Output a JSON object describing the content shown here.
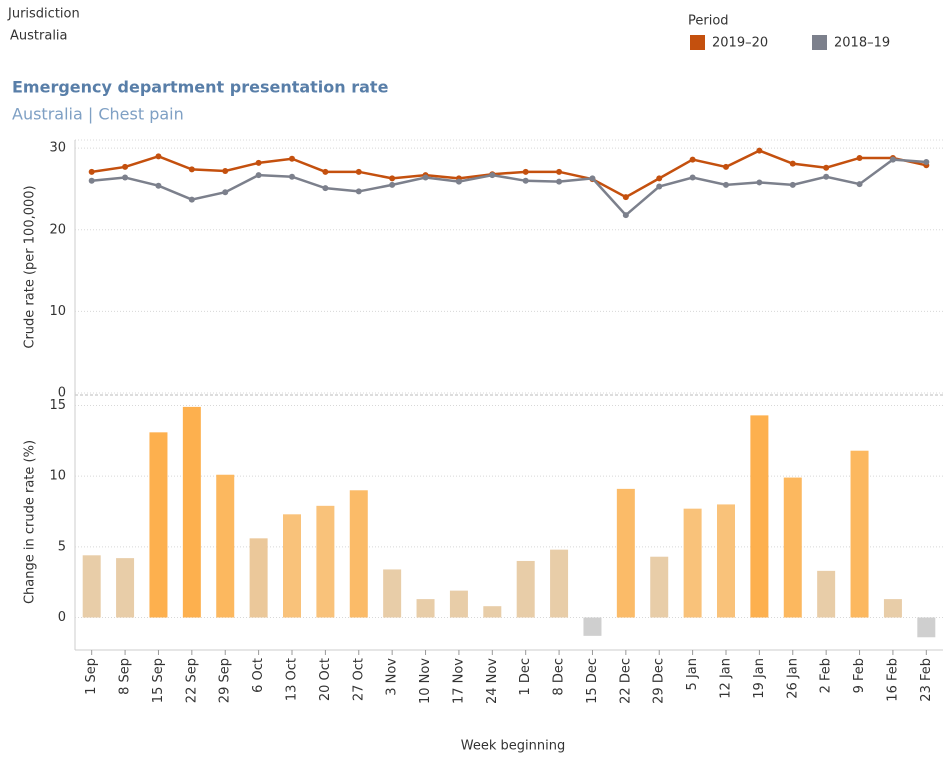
{
  "filter": {
    "label": "Jurisdiction",
    "value": "Australia"
  },
  "title": "Emergency department presentation rate",
  "subtitle": "Australia | Chest pain",
  "x_label": "Week beginning",
  "chart_data": [
    {
      "type": "line",
      "y_label": "Crude rate (per 100,000)",
      "legend_title": "Period",
      "categories": [
        "1 Sep",
        "8 Sep",
        "15 Sep",
        "22 Sep",
        "29 Sep",
        "6 Oct",
        "13 Oct",
        "20 Oct",
        "27 Oct",
        "3 Nov",
        "10 Nov",
        "17 Nov",
        "24 Nov",
        "1 Dec",
        "8 Dec",
        "15 Dec",
        "22 Dec",
        "29 Dec",
        "5 Jan",
        "12 Jan",
        "19 Jan",
        "26 Jan",
        "2 Feb",
        "9 Feb",
        "16 Feb",
        "23 Feb"
      ],
      "series": [
        {
          "name": "2019–20",
          "color": "#c4500e",
          "values": [
            27.1,
            27.7,
            29.0,
            27.4,
            27.2,
            28.2,
            28.7,
            27.1,
            27.1,
            26.3,
            26.7,
            26.3,
            26.8,
            27.1,
            27.1,
            26.2,
            24.0,
            26.3,
            28.6,
            27.7,
            29.7,
            28.1,
            27.6,
            28.8,
            28.8,
            27.9
          ]
        },
        {
          "name": "2018–19",
          "color": "#7c808c",
          "values": [
            26.0,
            26.4,
            25.4,
            23.7,
            24.6,
            26.7,
            26.5,
            25.1,
            24.7,
            25.5,
            26.4,
            25.9,
            26.7,
            26.0,
            25.9,
            26.3,
            21.8,
            25.3,
            26.4,
            25.5,
            25.8,
            25.5,
            26.5,
            25.6,
            28.6,
            28.3
          ]
        }
      ],
      "ylim": [
        0,
        31
      ],
      "yticks": [
        0,
        10,
        20,
        30
      ],
      "grid": true
    },
    {
      "type": "bar",
      "y_label": "Change in crude rate (%)",
      "categories": [
        "1 Sep",
        "8 Sep",
        "15 Sep",
        "22 Sep",
        "29 Sep",
        "6 Oct",
        "13 Oct",
        "20 Oct",
        "27 Oct",
        "3 Nov",
        "10 Nov",
        "17 Nov",
        "24 Nov",
        "1 Dec",
        "8 Dec",
        "15 Dec",
        "22 Dec",
        "29 Dec",
        "5 Jan",
        "12 Jan",
        "19 Jan",
        "26 Jan",
        "2 Feb",
        "9 Feb",
        "16 Feb",
        "23 Feb"
      ],
      "values": [
        4.4,
        4.2,
        13.1,
        14.9,
        10.1,
        5.6,
        7.3,
        7.9,
        9.0,
        3.4,
        1.3,
        1.9,
        0.8,
        4.0,
        4.8,
        -1.3,
        9.1,
        4.3,
        7.7,
        8.0,
        14.3,
        9.9,
        3.3,
        11.8,
        1.3,
        -1.4
      ],
      "colors": [
        "#e8cda8",
        "#e8cda8",
        "#fdb04e",
        "#fdb04e",
        "#fcb85f",
        "#ebc89a",
        "#f9c27a",
        "#f9c27a",
        "#fbbb68",
        "#e8cda8",
        "#e8cda8",
        "#e8cda8",
        "#e8cda8",
        "#e8cda8",
        "#e8cda8",
        "#cfcfcf",
        "#fbbb68",
        "#e8cda8",
        "#f9c27a",
        "#f9c27a",
        "#fdb04e",
        "#fcb85f",
        "#e8cda8",
        "#fcb85f",
        "#e8cda8",
        "#cfcfcf"
      ],
      "ylim": [
        -2.3,
        15.6
      ],
      "yticks": [
        0,
        5,
        10,
        15
      ],
      "grid": true
    }
  ]
}
